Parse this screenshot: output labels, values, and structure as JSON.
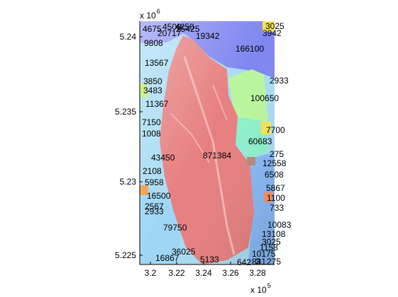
{
  "figure": {
    "x_exponent": {
      "base": "x 10",
      "power": "5"
    },
    "y_exponent": {
      "base": "x 10",
      "power": "6"
    }
  },
  "axes": {
    "x_ticks": [
      "3.2",
      "3.22",
      "3.24",
      "3.26",
      "3.28"
    ],
    "y_ticks": [
      "5.24",
      "5.235",
      "5.23",
      "5.225"
    ]
  },
  "chart_data": {
    "type": "heatmap",
    "description_kind": "shaded-relief map with watershed region labels",
    "x_unit_scale": "x 10^5",
    "y_unit_scale": "x 10^6",
    "xlim": [
      3.195,
      3.29
    ],
    "ylim": [
      5.2238,
      5.2417
    ],
    "region_labels": [
      "4675",
      "4500",
      "4250",
      "20717",
      "25425",
      "19342",
      "3025",
      "3942",
      "9808",
      "166100",
      "13567",
      "2933",
      "3850",
      "3483",
      "100650",
      "11367",
      "7150",
      "7700",
      "1008",
      "60683",
      "43450",
      "871384",
      "275",
      "12558",
      "2108",
      "6508",
      "5958",
      "5867",
      "16500",
      "1100",
      "2567",
      "733",
      "2933",
      "10083",
      "79750",
      "13108",
      "3025",
      "1158",
      "36025",
      "10175",
      "16867",
      "5133",
      "642",
      "831",
      "3",
      "275"
    ],
    "colors": {
      "main_basin": "#e77f7f",
      "north_basin": "#7f86f0",
      "east_basin": "#b9f59e",
      "mint_basin": "#8ef0cc",
      "sky_basin": "#9fd6f5",
      "orange_basin": "#f2a65c",
      "yellow_basin": "#f2e25a",
      "axis": "#000000",
      "background": "#ffffff"
    }
  }
}
